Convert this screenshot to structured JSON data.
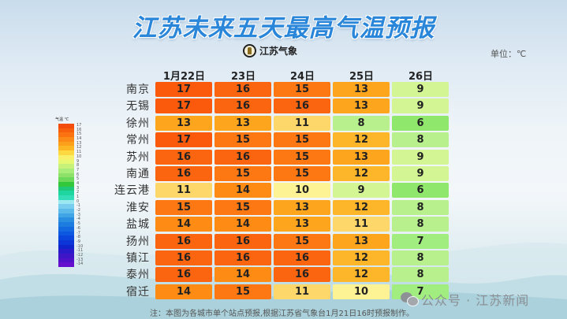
{
  "title": "江苏未来五天最高气温预报",
  "logo": {
    "icon": "jiangsu-meteorology-emblem-icon",
    "text": "江苏气象"
  },
  "unit_label": "单位：℃",
  "columns": [
    "1月22日",
    "23日",
    "24日",
    "25日",
    "26日"
  ],
  "rows": [
    {
      "city": "南京",
      "values": [
        17,
        16,
        15,
        13,
        9
      ]
    },
    {
      "city": "无锡",
      "values": [
        17,
        16,
        16,
        13,
        9
      ]
    },
    {
      "city": "徐州",
      "values": [
        13,
        13,
        11,
        8,
        6
      ]
    },
    {
      "city": "常州",
      "values": [
        17,
        15,
        15,
        12,
        8
      ]
    },
    {
      "city": "苏州",
      "values": [
        16,
        16,
        15,
        13,
        9
      ]
    },
    {
      "city": "南通",
      "values": [
        16,
        15,
        15,
        12,
        9
      ]
    },
    {
      "city": "连云港",
      "values": [
        11,
        14,
        10,
        9,
        6
      ]
    },
    {
      "city": "淮安",
      "values": [
        15,
        15,
        13,
        12,
        8
      ]
    },
    {
      "city": "盐城",
      "values": [
        14,
        14,
        13,
        11,
        8
      ]
    },
    {
      "city": "扬州",
      "values": [
        16,
        16,
        15,
        13,
        7
      ]
    },
    {
      "city": "镇江",
      "values": [
        16,
        16,
        16,
        12,
        8
      ]
    },
    {
      "city": "泰州",
      "values": [
        16,
        14,
        16,
        12,
        8
      ]
    },
    {
      "city": "宿迁",
      "values": [
        14,
        15,
        11,
        10,
        7
      ]
    }
  ],
  "color_scale": {
    "17": "#fb5a0c",
    "16": "#fc650f",
    "15": "#fd7812",
    "14": "#fd8b14",
    "13": "#fda61d",
    "12": "#fdb62a",
    "11": "#fed76a",
    "10": "#fdf394",
    "9": "#d3f593",
    "8": "#b8f08e",
    "7": "#a2ed7f",
    "6": "#8fe86c"
  },
  "legend": {
    "title": "气温  ℃",
    "labels": [
      "17",
      "16",
      "15",
      "14",
      "13",
      "12",
      "11",
      "10",
      "9",
      "8",
      "7",
      "6",
      "5",
      "4",
      "3",
      "2",
      "1",
      "0",
      "-1",
      "-2",
      "-3",
      "-4",
      "-5",
      "-6",
      "-7",
      "-8",
      "-9",
      "-10",
      "-11",
      "-12",
      "-13",
      "-14"
    ],
    "colors": [
      "#f24d0a",
      "#f85f0d",
      "#fb7311",
      "#fc8a16",
      "#fca01b",
      "#fdb624",
      "#fdd840",
      "#f9f06a",
      "#e6f772",
      "#c6f27a",
      "#a8ec79",
      "#8ee26a",
      "#6cd95a",
      "#33c73c",
      "#20c97a",
      "#1fd5a0",
      "#32ddb8",
      "#9ce8f1",
      "#79cdef",
      "#5cbaeb",
      "#3fa5e6",
      "#2a8fe1",
      "#1c7ce0",
      "#136ae0",
      "#0c58e0",
      "#0a46dc",
      "#0b35d6",
      "#1024cc",
      "#2a1ac9",
      "#3e16c8",
      "#5012c8",
      "#6410cc"
    ]
  },
  "note": "注：本图为各城市单个站点预报,根据江苏省气象台1月21日16时预报制作。",
  "watermark": {
    "icon": "wechat-icon",
    "text": "公众号 · 江苏新闻"
  },
  "chart_data": {
    "type": "heatmap",
    "title": "江苏未来五天最高气温预报",
    "unit": "℃",
    "x": [
      "1月22日",
      "23日",
      "24日",
      "25日",
      "26日"
    ],
    "y": [
      "南京",
      "无锡",
      "徐州",
      "常州",
      "苏州",
      "南通",
      "连云港",
      "淮安",
      "盐城",
      "扬州",
      "镇江",
      "泰州",
      "宿迁"
    ],
    "values": [
      [
        17,
        16,
        15,
        13,
        9
      ],
      [
        17,
        16,
        16,
        13,
        9
      ],
      [
        13,
        13,
        11,
        8,
        6
      ],
      [
        17,
        15,
        15,
        12,
        8
      ],
      [
        16,
        16,
        15,
        13,
        9
      ],
      [
        16,
        15,
        15,
        12,
        9
      ],
      [
        11,
        14,
        10,
        9,
        6
      ],
      [
        15,
        15,
        13,
        12,
        8
      ],
      [
        14,
        14,
        13,
        11,
        8
      ],
      [
        16,
        16,
        15,
        13,
        7
      ],
      [
        16,
        16,
        16,
        12,
        8
      ],
      [
        16,
        14,
        16,
        12,
        8
      ],
      [
        14,
        15,
        11,
        10,
        7
      ]
    ],
    "colorbar": {
      "min": -14,
      "max": 17,
      "label": "气温 ℃"
    },
    "annotation": "注：本图为各城市单个站点预报,根据江苏省气象台1月21日16时预报制作。"
  }
}
